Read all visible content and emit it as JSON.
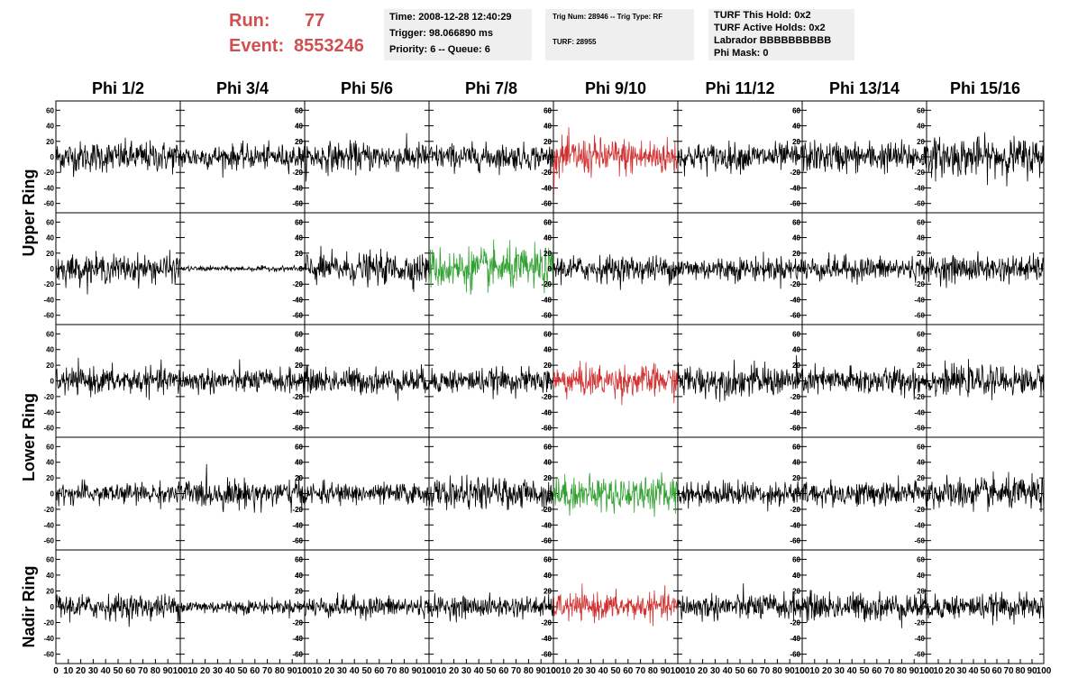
{
  "header": {
    "run_label": "Run:",
    "run_value": "77",
    "event_label": "Event:",
    "event_value": "8553246"
  },
  "info_time": {
    "time": "Time: 2008-12-28 12:40:29",
    "trigger": "Trigger: 98.066890 ms",
    "priority": "Priority: 6 -- Queue: 6"
  },
  "info_trigger": {
    "trig": "Trig Num: 28946 -- Trig Type: RF",
    "turf": "TURF: 28955"
  },
  "info_turf": {
    "hold": "TURF This Hold: 0x2",
    "active": "TURF Active Holds: 0x2",
    "labrador": "Labrador BBBBBBBBBB",
    "phimask": "Phi Mask: 0"
  },
  "chart_data": {
    "type": "line",
    "columns": [
      "Phi 1/2",
      "Phi 3/4",
      "Phi 5/6",
      "Phi 7/8",
      "Phi 9/10",
      "Phi 11/12",
      "Phi 13/14",
      "Phi 15/16"
    ],
    "rows": [
      "Upper Ring",
      "Lower Ring",
      "Nadir Ring"
    ],
    "ylim": [
      -65,
      65
    ],
    "yticks": [
      -60,
      -40,
      -20,
      0,
      20,
      40,
      60
    ],
    "xlim": [
      0,
      100
    ],
    "xticks": [
      0,
      10,
      20,
      30,
      40,
      50,
      60,
      70,
      80,
      90,
      100
    ],
    "xtick_labels": [
      "0",
      "10",
      "20",
      "30",
      "40",
      "50",
      "60",
      "70",
      "80",
      "90",
      "100"
    ],
    "colors": {
      "default": "#000000",
      "red": "#d03030",
      "green": "#30a030"
    },
    "panel_rows": [
      {
        "amplitudes": [
          18,
          14,
          17,
          15,
          22,
          16,
          18,
          22
        ],
        "colors": [
          "default",
          "default",
          "default",
          "default",
          "red",
          "default",
          "default",
          "default"
        ]
      },
      {
        "amplitudes": [
          16,
          3,
          18,
          24,
          15,
          14,
          14,
          15
        ],
        "colors": [
          "default",
          "default",
          "default",
          "green",
          "default",
          "default",
          "default",
          "default"
        ]
      },
      {
        "amplitudes": [
          15,
          14,
          15,
          14,
          18,
          18,
          16,
          16
        ],
        "colors": [
          "default",
          "default",
          "default",
          "default",
          "red",
          "default",
          "default",
          "default"
        ]
      },
      {
        "amplitudes": [
          12,
          16,
          12,
          17,
          20,
          14,
          14,
          18
        ],
        "colors": [
          "default",
          "default",
          "default",
          "default",
          "green",
          "default",
          "default",
          "default"
        ]
      },
      {
        "amplitudes": [
          14,
          8,
          12,
          12,
          15,
          15,
          16,
          14
        ],
        "colors": [
          "default",
          "default",
          "default",
          "default",
          "red",
          "default",
          "default",
          "default"
        ]
      }
    ]
  }
}
